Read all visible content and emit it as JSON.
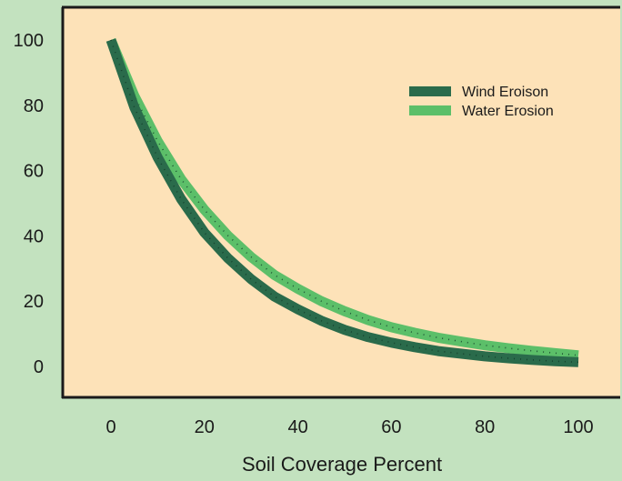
{
  "chart_data": {
    "type": "line",
    "title": "",
    "xlabel": "Soil Coverage Percent",
    "ylabel": "",
    "xlim": [
      -10,
      110
    ],
    "ylim": [
      -10,
      110
    ],
    "x_ticks": [
      0,
      20,
      40,
      60,
      80,
      100
    ],
    "y_ticks": [
      0,
      20,
      40,
      60,
      80,
      100
    ],
    "grid": false,
    "legend": "top-right",
    "colors": {
      "background": "#c3e2bf",
      "plot_bg": "#fde2b8",
      "axis": "#1a1a1a"
    },
    "x": [
      0,
      5,
      10,
      15,
      20,
      25,
      30,
      35,
      40,
      45,
      50,
      55,
      60,
      65,
      70,
      75,
      80,
      85,
      90,
      95,
      100
    ],
    "series": [
      {
        "name": "Wind Eroison",
        "color": "#2a6b4b",
        "values": [
          100,
          79.4,
          64.0,
          51.3,
          41.0,
          33.2,
          26.7,
          21.4,
          17.5,
          14.0,
          11.2,
          9.0,
          7.3,
          5.9,
          4.7,
          3.9,
          3.1,
          2.5,
          2.0,
          1.6,
          1.3
        ]
      },
      {
        "name": "Water Erosion",
        "color": "#5cbf69",
        "values": [
          100,
          82.9,
          69.0,
          57.4,
          48.0,
          40.1,
          33.5,
          28.0,
          23.8,
          20.0,
          16.9,
          14.2,
          12.0,
          10.3,
          8.8,
          7.6,
          6.5,
          5.6,
          4.8,
          4.1,
          3.4
        ]
      }
    ]
  }
}
